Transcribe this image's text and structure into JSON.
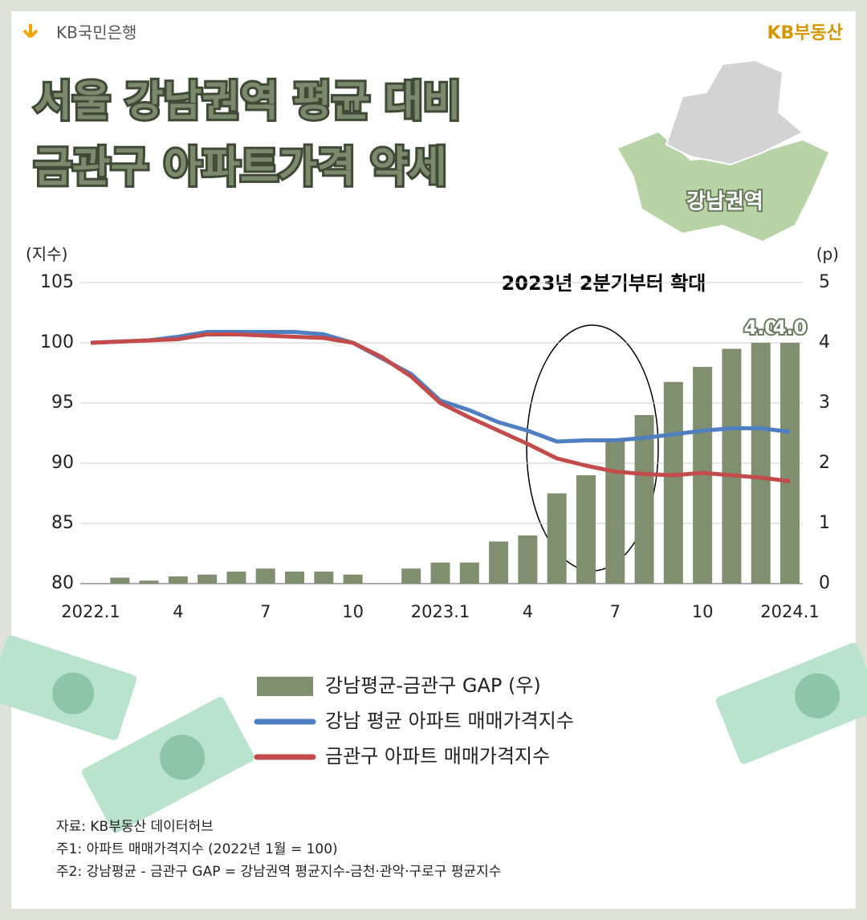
{
  "brand_left": "KB국민은행",
  "brand_right": "KB부동산",
  "title_lines": [
    "서울 강남권역 평균 대비",
    "금관구 아파트가격 약세"
  ],
  "map_label": "강남권역",
  "chart_data": {
    "type": "combo",
    "y_label": "(지수)",
    "y2_label": "(p)",
    "annotation": "2023년 2분기부터 확대",
    "categories": [
      "2022.1",
      null,
      null,
      "4",
      null,
      null,
      "7",
      null,
      null,
      "10",
      null,
      null,
      "2023.1",
      null,
      null,
      "4",
      null,
      null,
      "7",
      null,
      null,
      "10",
      null,
      null,
      "2024.1"
    ],
    "ylim": [
      80,
      105
    ],
    "yticks": [
      80,
      85,
      90,
      95,
      100,
      105
    ],
    "y2lim": [
      0,
      5
    ],
    "y2ticks": [
      0,
      1,
      2,
      3,
      4,
      5
    ],
    "grid": true,
    "series": [
      {
        "name": "강남평균-금관구 GAP (우)",
        "type": "bar",
        "axis": "y2",
        "color": "#7f8f6f",
        "values": [
          0,
          0.1,
          0.05,
          0.12,
          0.15,
          0.2,
          0.25,
          0.2,
          0.2,
          0.15,
          0,
          0.25,
          0.35,
          0.35,
          0.7,
          0.8,
          1.5,
          1.8,
          2.4,
          2.8,
          3.35,
          3.6,
          3.9,
          4.0,
          4.0
        ],
        "value_labels": [
          null,
          null,
          null,
          null,
          null,
          null,
          null,
          null,
          null,
          null,
          null,
          null,
          null,
          null,
          null,
          null,
          null,
          null,
          null,
          null,
          null,
          null,
          null,
          "4.0",
          "4.0"
        ]
      },
      {
        "name": "강남 평균 아파트 매매가격지수",
        "type": "line",
        "color": "#4f7fc0",
        "values": [
          100.0,
          100.1,
          100.2,
          100.5,
          100.9,
          100.9,
          100.9,
          100.9,
          100.7,
          100.0,
          98.7,
          97.4,
          95.2,
          94.4,
          93.4,
          92.7,
          91.8,
          91.9,
          91.9,
          92.1,
          92.4,
          92.7,
          92.9,
          92.9,
          92.6
        ]
      },
      {
        "name": "금관구 아파트 매매가격지수",
        "type": "line",
        "color": "#c44b4b",
        "values": [
          100.0,
          100.1,
          100.2,
          100.3,
          100.7,
          100.7,
          100.6,
          100.5,
          100.4,
          100.0,
          98.8,
          97.2,
          95.0,
          93.8,
          92.7,
          91.6,
          90.4,
          89.8,
          89.3,
          89.1,
          89.0,
          89.2,
          89.0,
          88.8,
          88.5
        ]
      }
    ]
  },
  "notes": [
    "자료: KB부동산 데이터허브",
    "주1: 아파트 매매가격지수 (2022년 1월 = 100)",
    "주2: 강남평균 - 금관구 GAP = 강남권역 평균지수-금천·관악·구로구 평균지수"
  ]
}
